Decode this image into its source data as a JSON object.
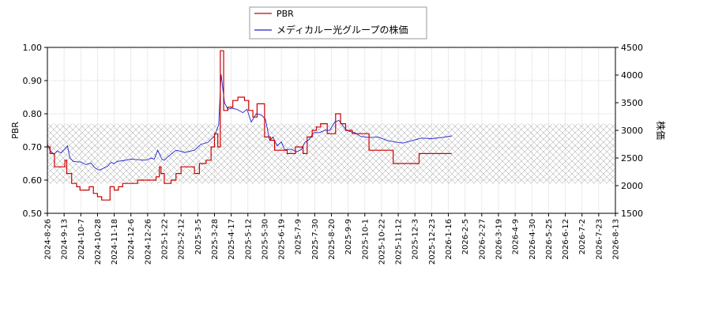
{
  "chart_data": {
    "type": "line",
    "legend": {
      "placement": "top-center",
      "entries": [
        {
          "label": "PBR",
          "color": "#cc0000"
        },
        {
          "label": "メディカルー光グループの株価",
          "color": "#2222cc"
        }
      ]
    },
    "ylabel_left": "PBR",
    "ylabel_right": "株価",
    "ylim_left": [
      0.5,
      1.0
    ],
    "ylim_right": [
      1500,
      4500
    ],
    "yticks_left": [
      "0.50",
      "0.60",
      "0.70",
      "0.80",
      "0.90",
      "1.00"
    ],
    "yticks_right": [
      "1500",
      "2000",
      "2500",
      "3000",
      "3500",
      "4000",
      "4500"
    ],
    "hatch_band": [
      0.59,
      0.77
    ],
    "grid": true,
    "x_ticks": [
      "2024-8-26",
      "2024-9-13",
      "2024-10-7",
      "2024-10-28",
      "2024-11-18",
      "2024-12-6",
      "2024-12-26",
      "2025-1-22",
      "2025-2-12",
      "2025-3-5",
      "2025-3-28",
      "2025-4-17",
      "2025-5-12",
      "2025-5-30",
      "2025-6-19",
      "2025-7-9",
      "2025-7-30",
      "2025-8-20",
      "2025-9-9",
      "2025-10-1",
      "2025-10-22",
      "2025-11-12",
      "2025-12-3",
      "2025-12-23",
      "2026-1-16",
      "2026-2-5",
      "2026-2-27",
      "2026-3-19",
      "2026-4-9",
      "2026-4-30",
      "2026-5-25",
      "2026-6-12",
      "2026-7-2",
      "2026-7-23",
      "2026-8-13"
    ],
    "series": [
      {
        "name": "PBR",
        "color": "#cc0000",
        "axis": "left",
        "step": true,
        "points": [
          [
            0.0,
            0.7
          ],
          [
            0.16,
            0.68
          ],
          [
            0.42,
            0.64
          ],
          [
            0.95,
            0.64
          ],
          [
            1.05,
            0.66
          ],
          [
            1.16,
            0.62
          ],
          [
            1.45,
            0.59
          ],
          [
            1.75,
            0.58
          ],
          [
            1.95,
            0.57
          ],
          [
            2.5,
            0.58
          ],
          [
            2.75,
            0.56
          ],
          [
            3.0,
            0.55
          ],
          [
            3.25,
            0.54
          ],
          [
            3.7,
            0.54
          ],
          [
            3.75,
            0.58
          ],
          [
            4.0,
            0.57
          ],
          [
            4.25,
            0.58
          ],
          [
            4.5,
            0.59
          ],
          [
            5.0,
            0.59
          ],
          [
            5.4,
            0.6
          ],
          [
            6.2,
            0.6
          ],
          [
            6.5,
            0.61
          ],
          [
            6.7,
            0.64
          ],
          [
            6.8,
            0.62
          ],
          [
            7.0,
            0.59
          ],
          [
            7.4,
            0.6
          ],
          [
            7.7,
            0.62
          ],
          [
            8.0,
            0.64
          ],
          [
            8.5,
            0.64
          ],
          [
            8.8,
            0.62
          ],
          [
            9.1,
            0.65
          ],
          [
            9.5,
            0.66
          ],
          [
            9.8,
            0.7
          ],
          [
            10.0,
            0.74
          ],
          [
            10.2,
            0.7
          ],
          [
            10.35,
            0.99
          ],
          [
            10.55,
            0.81
          ],
          [
            10.8,
            0.82
          ],
          [
            11.1,
            0.84
          ],
          [
            11.4,
            0.85
          ],
          [
            11.8,
            0.84
          ],
          [
            12.05,
            0.81
          ],
          [
            12.3,
            0.79
          ],
          [
            12.55,
            0.83
          ],
          [
            12.95,
            0.83
          ],
          [
            13.0,
            0.73
          ],
          [
            13.35,
            0.72
          ],
          [
            13.6,
            0.69
          ],
          [
            14.1,
            0.69
          ],
          [
            14.35,
            0.68
          ],
          [
            14.85,
            0.7
          ],
          [
            15.3,
            0.68
          ],
          [
            15.55,
            0.73
          ],
          [
            15.85,
            0.75
          ],
          [
            16.1,
            0.76
          ],
          [
            16.35,
            0.77
          ],
          [
            16.75,
            0.74
          ],
          [
            17.25,
            0.8
          ],
          [
            17.55,
            0.77
          ],
          [
            17.85,
            0.75
          ],
          [
            18.25,
            0.74
          ],
          [
            19.25,
            0.69
          ],
          [
            20.7,
            0.65
          ],
          [
            22.25,
            0.68
          ],
          [
            24.2,
            0.68
          ]
        ]
      },
      {
        "name": "メディカルー光グループの株価",
        "color": "#2222cc",
        "axis": "right",
        "step": false,
        "points": [
          [
            0.0,
            2750
          ],
          [
            0.2,
            2620
          ],
          [
            0.4,
            2570
          ],
          [
            0.6,
            2630
          ],
          [
            0.8,
            2590
          ],
          [
            1.0,
            2650
          ],
          [
            1.2,
            2720
          ],
          [
            1.35,
            2500
          ],
          [
            1.55,
            2440
          ],
          [
            1.8,
            2430
          ],
          [
            2.0,
            2430
          ],
          [
            2.3,
            2380
          ],
          [
            2.6,
            2410
          ],
          [
            2.85,
            2320
          ],
          [
            3.1,
            2280
          ],
          [
            3.4,
            2320
          ],
          [
            3.6,
            2350
          ],
          [
            3.8,
            2420
          ],
          [
            4.0,
            2400
          ],
          [
            4.2,
            2440
          ],
          [
            4.5,
            2450
          ],
          [
            5.0,
            2480
          ],
          [
            5.4,
            2470
          ],
          [
            5.8,
            2460
          ],
          [
            6.0,
            2470
          ],
          [
            6.2,
            2500
          ],
          [
            6.4,
            2480
          ],
          [
            6.6,
            2640
          ],
          [
            6.85,
            2480
          ],
          [
            7.0,
            2460
          ],
          [
            7.2,
            2520
          ],
          [
            7.45,
            2580
          ],
          [
            7.7,
            2640
          ],
          [
            8.0,
            2620
          ],
          [
            8.2,
            2600
          ],
          [
            8.5,
            2620
          ],
          [
            8.8,
            2640
          ],
          [
            9.2,
            2750
          ],
          [
            9.6,
            2780
          ],
          [
            10.0,
            2900
          ],
          [
            10.25,
            3100
          ],
          [
            10.4,
            4010
          ],
          [
            10.6,
            3500
          ],
          [
            10.8,
            3380
          ],
          [
            11.05,
            3400
          ],
          [
            11.35,
            3380
          ],
          [
            11.7,
            3320
          ],
          [
            11.95,
            3380
          ],
          [
            12.2,
            3150
          ],
          [
            12.5,
            3300
          ],
          [
            12.8,
            3280
          ],
          [
            13.05,
            3200
          ],
          [
            13.3,
            2820
          ],
          [
            13.5,
            2880
          ],
          [
            13.75,
            2720
          ],
          [
            14.0,
            2790
          ],
          [
            14.2,
            2650
          ],
          [
            14.6,
            2660
          ],
          [
            14.9,
            2610
          ],
          [
            15.2,
            2650
          ],
          [
            15.4,
            2780
          ],
          [
            15.65,
            2830
          ],
          [
            15.95,
            2960
          ],
          [
            16.3,
            2960
          ],
          [
            16.6,
            3000
          ],
          [
            16.9,
            3000
          ],
          [
            17.2,
            3150
          ],
          [
            17.45,
            3180
          ],
          [
            17.65,
            3100
          ],
          [
            17.85,
            3020
          ],
          [
            18.1,
            2980
          ],
          [
            18.4,
            2960
          ],
          [
            18.75,
            2890
          ],
          [
            19.3,
            2870
          ],
          [
            19.8,
            2880
          ],
          [
            20.3,
            2820
          ],
          [
            20.8,
            2790
          ],
          [
            21.3,
            2770
          ],
          [
            21.9,
            2820
          ],
          [
            22.4,
            2860
          ],
          [
            23.0,
            2850
          ],
          [
            23.6,
            2870
          ],
          [
            24.2,
            2900
          ]
        ]
      }
    ]
  }
}
